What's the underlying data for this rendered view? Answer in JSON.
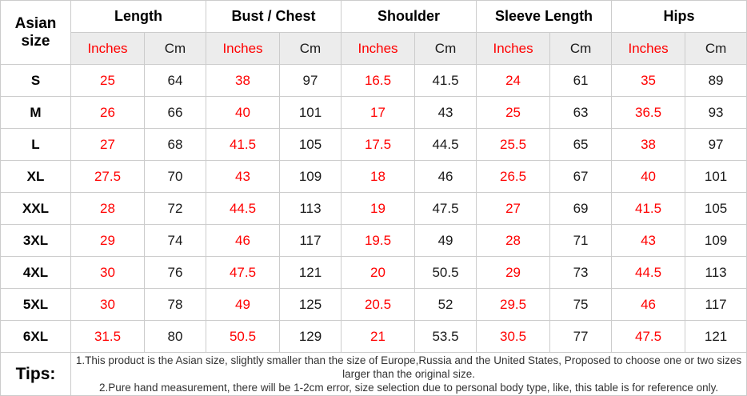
{
  "table": {
    "corner_header": "Asian size",
    "groups": [
      {
        "label": "Length"
      },
      {
        "label": "Bust / Chest"
      },
      {
        "label": "Shoulder"
      },
      {
        "label": "Sleeve Length"
      },
      {
        "label": "Hips"
      }
    ],
    "units": {
      "inches": "Inches",
      "cm": "Cm"
    },
    "rows": [
      {
        "size": "S",
        "values": [
          "25",
          "64",
          "38",
          "97",
          "16.5",
          "41.5",
          "24",
          "61",
          "35",
          "89"
        ]
      },
      {
        "size": "M",
        "values": [
          "26",
          "66",
          "40",
          "101",
          "17",
          "43",
          "25",
          "63",
          "36.5",
          "93"
        ]
      },
      {
        "size": "L",
        "values": [
          "27",
          "68",
          "41.5",
          "105",
          "17.5",
          "44.5",
          "25.5",
          "65",
          "38",
          "97"
        ]
      },
      {
        "size": "XL",
        "values": [
          "27.5",
          "70",
          "43",
          "109",
          "18",
          "46",
          "26.5",
          "67",
          "40",
          "101"
        ]
      },
      {
        "size": "XXL",
        "values": [
          "28",
          "72",
          "44.5",
          "113",
          "19",
          "47.5",
          "27",
          "69",
          "41.5",
          "105"
        ]
      },
      {
        "size": "3XL",
        "values": [
          "29",
          "74",
          "46",
          "117",
          "19.5",
          "49",
          "28",
          "71",
          "43",
          "109"
        ]
      },
      {
        "size": "4XL",
        "values": [
          "30",
          "76",
          "47.5",
          "121",
          "20",
          "50.5",
          "29",
          "73",
          "44.5",
          "113"
        ]
      },
      {
        "size": "5XL",
        "values": [
          "30",
          "78",
          "49",
          "125",
          "20.5",
          "52",
          "29.5",
          "75",
          "46",
          "117"
        ]
      },
      {
        "size": "6XL",
        "values": [
          "31.5",
          "80",
          "50.5",
          "129",
          "21",
          "53.5",
          "30.5",
          "77",
          "47.5",
          "121"
        ]
      }
    ],
    "tips": {
      "label": "Tips:",
      "lines": [
        "1.This product is the Asian size, slightly smaller than the size of Europe,Russia and the United States, Proposed to choose one or two sizes larger than the original size.",
        "2.Pure hand measurement, there will be 1-2cm error, size selection due to personal body type, like, this table is for reference only."
      ]
    },
    "colors": {
      "accent_red": "#ff0000",
      "text_black": "#1a1a1a",
      "border": "#cccccc",
      "unit_row_bg": "#ececec"
    }
  }
}
